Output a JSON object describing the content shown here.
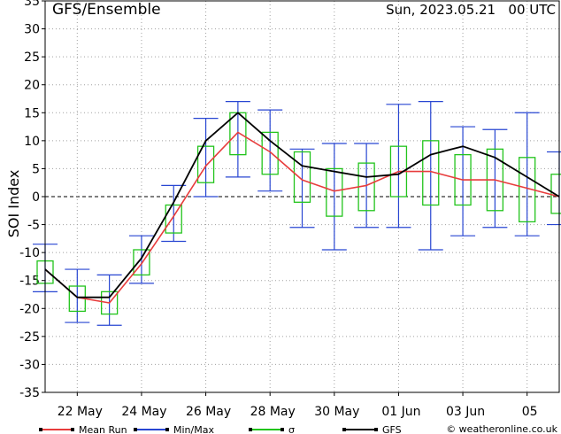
{
  "header": {
    "title": "GFS/Ensemble",
    "timestamp": "Sun, 2023.05.21   00 UTC"
  },
  "copyright": "© weatheronline.co.uk",
  "legend": [
    {
      "label": "Mean Run",
      "color": "#e83c3c"
    },
    {
      "label": "Min/Max",
      "color": "#2846d2"
    },
    {
      "label": "σ",
      "color": "#22c41c"
    },
    {
      "label": "GFS",
      "color": "#000000"
    }
  ],
  "chart_data": {
    "type": "line",
    "ylabel": "SOI Index",
    "ylim": [
      -35,
      35
    ],
    "y_ticks": [
      35,
      30,
      25,
      20,
      15,
      10,
      5,
      0,
      -5,
      -10,
      -15,
      -20,
      -25,
      -30,
      -35
    ],
    "xlim": [
      0,
      16
    ],
    "x_tick_labels": [
      {
        "label": "22 May",
        "x": 1
      },
      {
        "label": "24 May",
        "x": 3
      },
      {
        "label": "26 May",
        "x": 5
      },
      {
        "label": "28 May",
        "x": 7
      },
      {
        "label": "30 May",
        "x": 9
      },
      {
        "label": "01 Jun",
        "x": 11
      },
      {
        "label": "03 Jun",
        "x": 13
      },
      {
        "label": "05",
        "x": 15
      }
    ],
    "grid": true,
    "x": [
      0,
      1,
      2,
      3,
      4,
      5,
      6,
      7,
      8,
      9,
      10,
      11,
      12,
      13,
      14,
      15,
      16
    ],
    "series": [
      {
        "name": "GFS",
        "color": "#000000",
        "values": [
          -13,
          -18,
          -18,
          -11,
          -1,
          10,
          15,
          10,
          5.5,
          4.5,
          3.5,
          4,
          7.5,
          9,
          7,
          3.5,
          0
        ]
      },
      {
        "name": "Mean Run",
        "color": "#e83c3c",
        "values": [
          -13,
          -18,
          -19,
          -12,
          -3.5,
          5.5,
          11.5,
          8,
          3,
          1,
          2,
          4.5,
          4.5,
          3,
          3,
          1.5,
          0
        ]
      },
      {
        "name": "Min/Max",
        "color": "#2846d2",
        "min": [
          -17,
          -22.5,
          -23,
          -15.5,
          -8,
          0,
          3.5,
          1,
          -5.5,
          -9.5,
          -5.5,
          -5.5,
          -9.5,
          -7,
          -5.5,
          -7,
          -5
        ],
        "max": [
          -8.5,
          -13,
          -14,
          -7,
          2,
          14,
          17,
          15.5,
          8.5,
          9.5,
          9.5,
          16.5,
          17,
          12.5,
          12,
          15,
          8
        ]
      },
      {
        "name": "σ",
        "color": "#22c41c",
        "low": [
          -15.5,
          -20.5,
          -21,
          -14,
          -6.5,
          2.5,
          7.5,
          4,
          -1,
          -3.5,
          -2.5,
          0,
          -1.5,
          -1.5,
          -2.5,
          -4.5,
          -3
        ],
        "high": [
          -11.5,
          -16,
          -17,
          -9.5,
          -1.5,
          9,
          15,
          11.5,
          8,
          5,
          6,
          9,
          10,
          7.5,
          8.5,
          7,
          4
        ]
      }
    ]
  }
}
